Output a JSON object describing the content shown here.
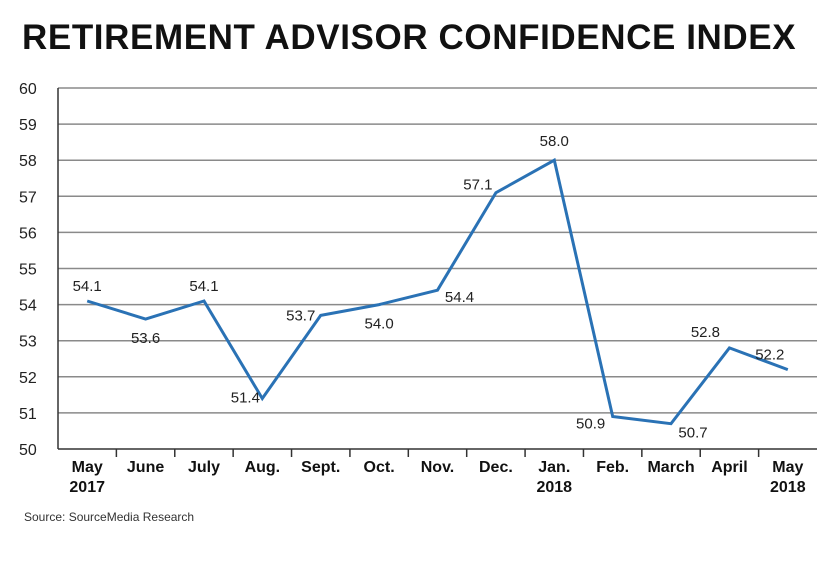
{
  "chart_data": {
    "type": "line",
    "title": "RETIREMENT ADVISOR CONFIDENCE INDEX",
    "source": "Source: SourceMedia Research",
    "xlabel": "",
    "ylabel": "",
    "ylim": [
      50,
      60
    ],
    "yticks": [
      "50",
      "51",
      "52",
      "53",
      "54",
      "55",
      "56",
      "57",
      "58",
      "59",
      "60"
    ],
    "grid": true,
    "categories": [
      [
        "May",
        "2017"
      ],
      [
        "June"
      ],
      [
        "July"
      ],
      [
        "Aug."
      ],
      [
        "Sept."
      ],
      [
        "Oct."
      ],
      [
        "Nov."
      ],
      [
        "Dec."
      ],
      [
        "Jan.",
        "2018"
      ],
      [
        "Feb."
      ],
      [
        "March"
      ],
      [
        "April"
      ],
      [
        "May",
        "2018"
      ]
    ],
    "values": [
      54.1,
      53.6,
      54.1,
      51.4,
      53.7,
      54.0,
      54.4,
      57.1,
      58.0,
      50.9,
      50.7,
      52.8,
      52.2
    ],
    "labels": [
      "54.1",
      "53.6",
      "54.1",
      "51.4",
      "53.7",
      "54.0",
      "54.4",
      "57.1",
      "58.0",
      "50.9",
      "50.7",
      "52.8",
      "52.2"
    ],
    "line_color": "#2a72b5",
    "grid_color": "#8a8a8a"
  }
}
